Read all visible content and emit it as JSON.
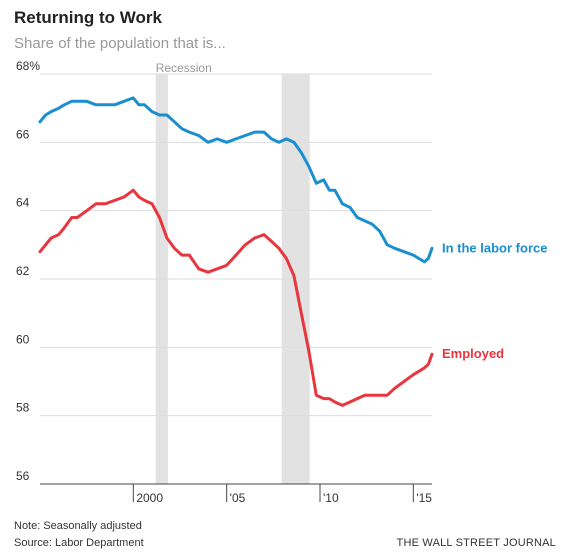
{
  "title": "Returning to Work",
  "subtitle": "Share of the population that is...",
  "note": "Note: Seasonally adjusted",
  "source": "Source: Labor Department",
  "credit": "THE WALL STREET JOURNAL",
  "chart_data": {
    "type": "line",
    "title": "Returning to Work",
    "subtitle": "Share of the population that is...",
    "xlabel": "",
    "ylabel": "",
    "xlim": [
      1995.0,
      2016.0
    ],
    "ylim": [
      56,
      68
    ],
    "y_ticks": [
      {
        "value": 68,
        "label": "68%"
      },
      {
        "value": 66,
        "label": "66"
      },
      {
        "value": 64,
        "label": "64"
      },
      {
        "value": 62,
        "label": "62"
      },
      {
        "value": 60,
        "label": "60"
      },
      {
        "value": 58,
        "label": "58"
      },
      {
        "value": 56,
        "label": "56"
      }
    ],
    "x_ticks": [
      {
        "value": 2000,
        "label": "2000"
      },
      {
        "value": 2005,
        "label": "'05"
      },
      {
        "value": 2010,
        "label": "'10"
      },
      {
        "value": 2015,
        "label": "'15"
      }
    ],
    "grid": "horizontal",
    "recessions": [
      {
        "start": 2001.2,
        "end": 2001.85,
        "label": "Recession"
      },
      {
        "start": 2007.95,
        "end": 2009.45,
        "label": ""
      }
    ],
    "colors": {
      "labor_force": "#1a8fcf",
      "employed": "#e8363f",
      "recession": "#e2e2e2",
      "grid": "#dddddd",
      "axis": "#444444"
    },
    "series": [
      {
        "name": "In the labor force",
        "color": "#1a8fcf",
        "x": [
          1995.0,
          1995.3,
          1995.6,
          1996.0,
          1996.3,
          1996.7,
          1997.0,
          1997.5,
          1998.0,
          1998.5,
          1999.0,
          1999.5,
          2000.0,
          2000.3,
          2000.6,
          2001.0,
          2001.4,
          2001.8,
          2002.2,
          2002.6,
          2003.0,
          2003.5,
          2004.0,
          2004.5,
          2005.0,
          2005.5,
          2006.0,
          2006.5,
          2007.0,
          2007.4,
          2007.8,
          2008.2,
          2008.6,
          2009.0,
          2009.4,
          2009.8,
          2010.2,
          2010.5,
          2010.8,
          2011.2,
          2011.6,
          2012.0,
          2012.4,
          2012.8,
          2013.2,
          2013.6,
          2014.0,
          2014.5,
          2015.0,
          2015.3,
          2015.6,
          2015.8,
          2016.0
        ],
        "y": [
          66.6,
          66.8,
          66.9,
          67.0,
          67.1,
          67.2,
          67.2,
          67.2,
          67.1,
          67.1,
          67.1,
          67.2,
          67.3,
          67.1,
          67.1,
          66.9,
          66.8,
          66.8,
          66.6,
          66.4,
          66.3,
          66.2,
          66.0,
          66.1,
          66.0,
          66.1,
          66.2,
          66.3,
          66.3,
          66.1,
          66.0,
          66.1,
          66.0,
          65.7,
          65.3,
          64.8,
          64.9,
          64.6,
          64.6,
          64.2,
          64.1,
          63.8,
          63.7,
          63.6,
          63.4,
          63.0,
          62.9,
          62.8,
          62.7,
          62.6,
          62.5,
          62.6,
          62.9
        ]
      },
      {
        "name": "Employed",
        "color": "#e8363f",
        "x": [
          1995.0,
          1995.3,
          1995.6,
          1996.0,
          1996.3,
          1996.7,
          1997.0,
          1997.5,
          1998.0,
          1998.5,
          1999.0,
          1999.5,
          2000.0,
          2000.3,
          2000.6,
          2001.0,
          2001.4,
          2001.8,
          2002.2,
          2002.6,
          2003.0,
          2003.5,
          2004.0,
          2004.5,
          2005.0,
          2005.5,
          2006.0,
          2006.5,
          2007.0,
          2007.4,
          2007.8,
          2008.2,
          2008.6,
          2009.0,
          2009.4,
          2009.8,
          2010.2,
          2010.5,
          2010.8,
          2011.2,
          2011.6,
          2012.0,
          2012.4,
          2012.8,
          2013.2,
          2013.6,
          2014.0,
          2014.5,
          2015.0,
          2015.3,
          2015.6,
          2015.8,
          2016.0
        ],
        "y": [
          62.8,
          63.0,
          63.2,
          63.3,
          63.5,
          63.8,
          63.8,
          64.0,
          64.2,
          64.2,
          64.3,
          64.4,
          64.6,
          64.4,
          64.3,
          64.2,
          63.8,
          63.2,
          62.9,
          62.7,
          62.7,
          62.3,
          62.2,
          62.3,
          62.4,
          62.7,
          63.0,
          63.2,
          63.3,
          63.1,
          62.9,
          62.6,
          62.1,
          61.0,
          59.9,
          58.6,
          58.5,
          58.5,
          58.4,
          58.3,
          58.4,
          58.5,
          58.6,
          58.6,
          58.6,
          58.6,
          58.8,
          59.0,
          59.2,
          59.3,
          59.4,
          59.5,
          59.8
        ]
      }
    ]
  }
}
